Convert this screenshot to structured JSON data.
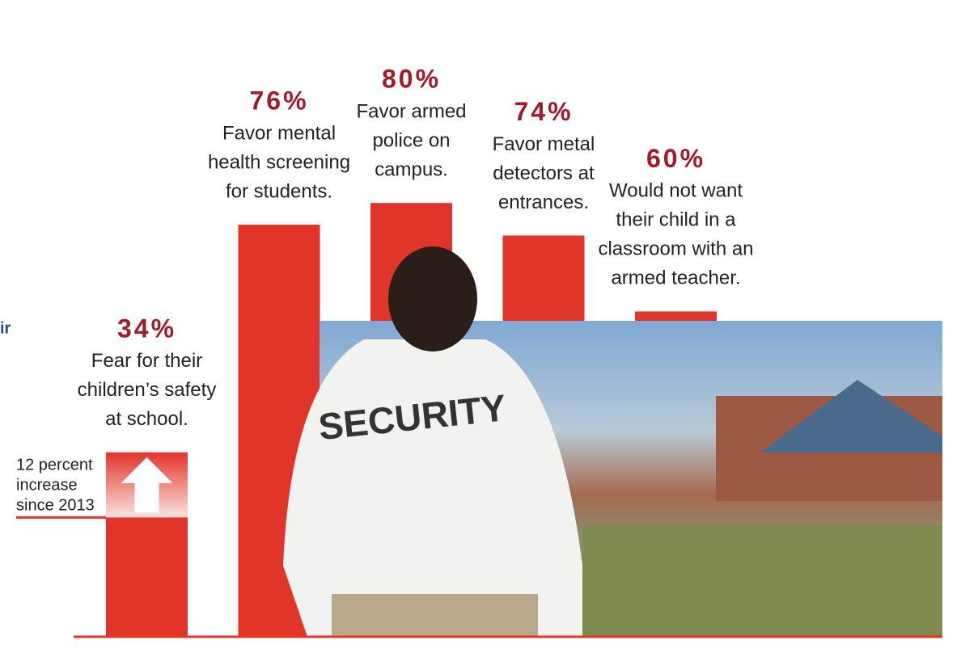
{
  "chart_data": {
    "type": "bar",
    "categories": [
      [
        "Fear for their",
        "children’s safety",
        "at school."
      ],
      [
        "Favor mental",
        "health screening",
        "for students."
      ],
      [
        "Favor armed",
        "police on",
        "campus."
      ],
      [
        "Favor metal",
        "detectors at",
        "entrances."
      ],
      [
        "Would not want",
        "their child in a",
        "classroom with an",
        "armed teacher."
      ]
    ],
    "values": [
      34,
      76,
      80,
      74,
      60
    ],
    "value_labels": [
      "34%",
      "76%",
      "80%",
      "74%",
      "60%"
    ],
    "color": "#e2352a",
    "label_color": "#a01c2c",
    "ylim": [
      0,
      100
    ],
    "annotation": {
      "lines": [
        "12 percent",
        "increase",
        "since 2013"
      ],
      "value": 12
    },
    "photo_text": "SECURITY",
    "edge_text": "ir"
  }
}
